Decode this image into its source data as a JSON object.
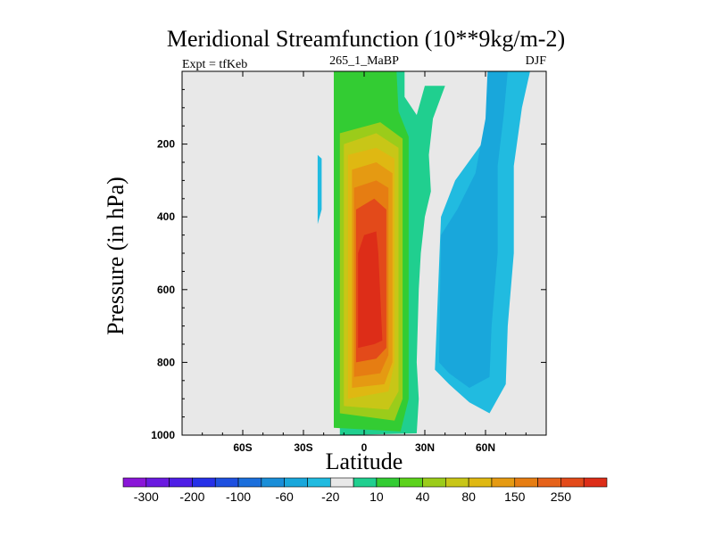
{
  "chart_data": {
    "type": "heatmap",
    "title": "Meridional Streamfunction (10**9kg/m-2)",
    "left_label": "Expt = tfKeb",
    "center_label": "265_1_MaBP",
    "right_label": "DJF",
    "xlabel": "Latitude",
    "ylabel": "Pressure (in hPa)",
    "xlim": [
      -90,
      90
    ],
    "ylim": [
      1000,
      0
    ],
    "x_ticks": [
      {
        "value": -60,
        "label": "60S"
      },
      {
        "value": -30,
        "label": "30S"
      },
      {
        "value": 0,
        "label": "0"
      },
      {
        "value": 30,
        "label": "30N"
      },
      {
        "value": 60,
        "label": "60N"
      }
    ],
    "y_ticks": [
      {
        "value": 200,
        "label": "200"
      },
      {
        "value": 400,
        "label": "400"
      },
      {
        "value": 600,
        "label": "600"
      },
      {
        "value": 800,
        "label": "800"
      },
      {
        "value": 1000,
        "label": "1000"
      }
    ],
    "background_color": "#e8e8e8",
    "colorbar": {
      "labels": [
        "-300",
        "-200",
        "-100",
        "-60",
        "-20",
        "10",
        "40",
        "80",
        "150",
        "250"
      ],
      "colors": [
        "#8a16d8",
        "#6a1ae0",
        "#4e1ee6",
        "#2630e8",
        "#1e50e0",
        "#1b6fdc",
        "#1a8ed8",
        "#19a7db",
        "#21bbe0",
        "#e8e8e8",
        "#20cf8f",
        "#33cc33",
        "#5cd21c",
        "#9bcc1a",
        "#c8c617",
        "#dfb812",
        "#e59a12",
        "#e67d12",
        "#e6621a",
        "#e34a1a",
        "#dd2d18"
      ]
    },
    "contours": [
      {
        "level": "10",
        "color": "#20cf8f",
        "points": [
          [
            -12,
            1000
          ],
          [
            -12,
            0
          ],
          [
            20,
            0
          ],
          [
            20,
            70
          ],
          [
            26,
            120
          ],
          [
            30,
            40
          ],
          [
            40,
            40
          ],
          [
            34,
            130
          ],
          [
            32,
            230
          ],
          [
            33,
            330
          ],
          [
            30,
            400
          ],
          [
            28,
            500
          ],
          [
            27,
            600
          ],
          [
            26,
            800
          ],
          [
            27,
            900
          ],
          [
            26,
            995
          ]
        ]
      },
      {
        "level": "40",
        "color": "#33cc33",
        "points": [
          [
            -15,
            980
          ],
          [
            -15,
            0
          ],
          [
            16,
            0
          ],
          [
            17,
            110
          ],
          [
            22,
            180
          ],
          [
            22,
            300
          ],
          [
            22,
            600
          ],
          [
            22,
            900
          ],
          [
            18,
            990
          ]
        ]
      },
      {
        "level": "80",
        "color": "#9bcc1a",
        "points": [
          [
            -12,
            940
          ],
          [
            -12,
            170
          ],
          [
            8,
            140
          ],
          [
            19,
            185
          ],
          [
            19,
            400
          ],
          [
            19,
            700
          ],
          [
            19,
            900
          ],
          [
            15,
            960
          ]
        ]
      },
      {
        "level": "100",
        "color": "#c8c617",
        "points": [
          [
            -10,
            920
          ],
          [
            -10,
            200
          ],
          [
            6,
            170
          ],
          [
            17,
            210
          ],
          [
            17,
            400
          ],
          [
            17,
            700
          ],
          [
            17,
            880
          ],
          [
            12,
            930
          ]
        ]
      },
      {
        "level": "150",
        "color": "#dfb812",
        "points": [
          [
            -8,
            900
          ],
          [
            -8,
            230
          ],
          [
            6,
            210
          ],
          [
            15,
            240
          ],
          [
            15,
            500
          ],
          [
            15,
            800
          ],
          [
            12,
            880
          ]
        ]
      },
      {
        "level": "170",
        "color": "#e59a12",
        "points": [
          [
            -6,
            870
          ],
          [
            -6,
            270
          ],
          [
            6,
            250
          ],
          [
            14,
            280
          ],
          [
            14,
            500
          ],
          [
            14,
            800
          ],
          [
            10,
            860
          ]
        ]
      },
      {
        "level": "200",
        "color": "#e67d12",
        "points": [
          [
            -5,
            840
          ],
          [
            -5,
            320
          ],
          [
            6,
            300
          ],
          [
            12,
            320
          ],
          [
            12,
            500
          ],
          [
            12,
            780
          ],
          [
            8,
            830
          ]
        ]
      },
      {
        "level": "250",
        "color": "#e34a1a",
        "points": [
          [
            -4,
            800
          ],
          [
            -4,
            380
          ],
          [
            5,
            350
          ],
          [
            11,
            380
          ],
          [
            11,
            500
          ],
          [
            11,
            760
          ],
          [
            6,
            790
          ]
        ]
      },
      {
        "level": "280",
        "color": "#dd2d18",
        "points": [
          [
            -3,
            760
          ],
          [
            -3,
            500
          ],
          [
            0,
            450
          ],
          [
            6,
            440
          ],
          [
            7,
            500
          ],
          [
            9,
            740
          ],
          [
            5,
            750
          ]
        ]
      },
      {
        "level": "-20",
        "color": "#21bbe0",
        "points": [
          [
            35,
            820
          ],
          [
            38,
            400
          ],
          [
            45,
            300
          ],
          [
            58,
            200
          ],
          [
            62,
            80
          ],
          [
            64,
            0
          ],
          [
            82,
            0
          ],
          [
            78,
            100
          ],
          [
            74,
            260
          ],
          [
            74,
            500
          ],
          [
            71,
            700
          ],
          [
            70,
            860
          ],
          [
            62,
            940
          ],
          [
            52,
            910
          ],
          [
            42,
            860
          ]
        ]
      },
      {
        "level": "-40",
        "color": "#19a7db",
        "points": [
          [
            37,
            800
          ],
          [
            38,
            450
          ],
          [
            46,
            380
          ],
          [
            55,
            280
          ],
          [
            60,
            130
          ],
          [
            61,
            0
          ],
          [
            71,
            0
          ],
          [
            69,
            120
          ],
          [
            66,
            260
          ],
          [
            66,
            500
          ],
          [
            63,
            700
          ],
          [
            62,
            840
          ],
          [
            52,
            870
          ],
          [
            42,
            830
          ]
        ]
      },
      {
        "level": "-20",
        "color": "#21bbe0",
        "points": [
          [
            -23,
            320
          ],
          [
            -23,
            230
          ],
          [
            -21,
            240
          ],
          [
            -21,
            380
          ],
          [
            -23,
            420
          ]
        ]
      }
    ]
  }
}
